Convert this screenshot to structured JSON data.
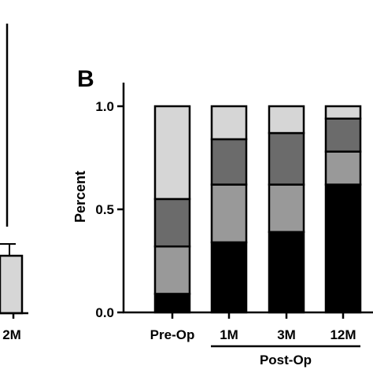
{
  "panel_a": {
    "last_tick_label": "2M"
  },
  "chart_data": {
    "type": "bar",
    "stacked": true,
    "panel_label": "B",
    "ylabel": "Percent",
    "ylim": [
      0,
      1.0
    ],
    "yticks": [
      {
        "value": 0.0,
        "label": "0.0"
      },
      {
        "value": 0.5,
        "label": "0.5"
      },
      {
        "value": 1.0,
        "label": "1.0"
      }
    ],
    "categories": [
      "Pre-Op",
      "1M",
      "3M",
      "12M"
    ],
    "group_label": "Post-Op",
    "group_categories": [
      "1M",
      "3M",
      "12M"
    ],
    "grid": false,
    "series": [
      {
        "color": "#000000",
        "values": [
          0.09,
          0.34,
          0.39,
          0.62
        ]
      },
      {
        "color": "#999999",
        "values": [
          0.23,
          0.28,
          0.23,
          0.16
        ]
      },
      {
        "color": "#6b6b6b",
        "values": [
          0.23,
          0.22,
          0.25,
          0.16
        ]
      },
      {
        "color": "#d6d6d6",
        "values": [
          0.45,
          0.16,
          0.13,
          0.06
        ]
      }
    ]
  }
}
